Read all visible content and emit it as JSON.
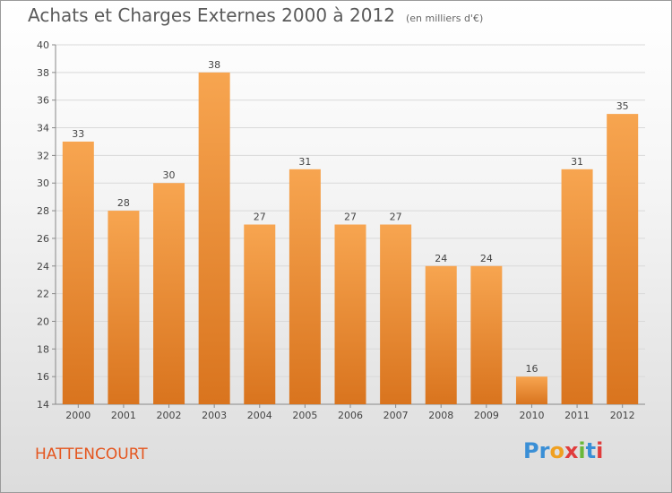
{
  "chart_data": {
    "type": "bar",
    "title": "Achats et Charges Externes 2000 à 2012",
    "subtitle": "(en milliers d'€)",
    "categories": [
      "2000",
      "2001",
      "2002",
      "2003",
      "2004",
      "2005",
      "2006",
      "2007",
      "2008",
      "2009",
      "2010",
      "2011",
      "2012"
    ],
    "values": [
      33,
      28,
      30,
      38,
      27,
      31,
      27,
      27,
      24,
      24,
      16,
      31,
      35
    ],
    "ylim": [
      14,
      40
    ],
    "yticks": [
      14,
      16,
      18,
      20,
      22,
      24,
      26,
      28,
      30,
      32,
      34,
      36,
      38,
      40
    ],
    "grid": true,
    "bar_color_top": "#f7a550",
    "bar_color_bottom": "#d9741e"
  },
  "labels": {
    "commune": "HATTENCOURT",
    "logo_letters": [
      {
        "ch": "P",
        "color": "#3a8fd6"
      },
      {
        "ch": "r",
        "color": "#3a8fd6"
      },
      {
        "ch": "o",
        "color": "#f0a020"
      },
      {
        "ch": "x",
        "color": "#e03c3c"
      },
      {
        "ch": "i",
        "color": "#6ab83a"
      },
      {
        "ch": "t",
        "color": "#3a8fd6"
      },
      {
        "ch": "i",
        "color": "#e03c3c"
      }
    ]
  }
}
